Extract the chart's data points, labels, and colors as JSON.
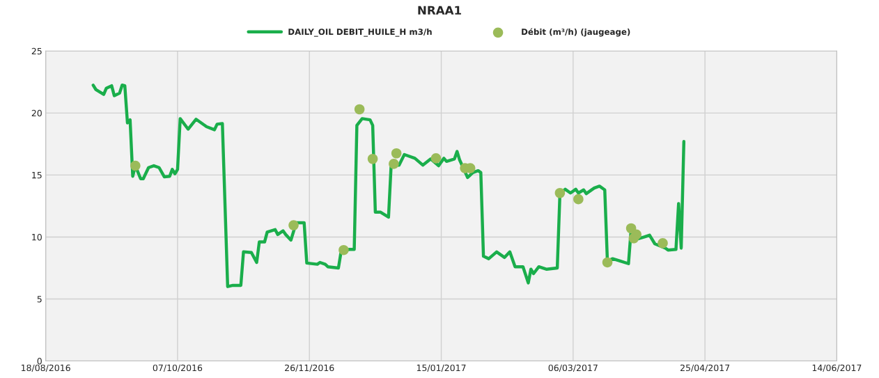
{
  "chart_data": {
    "type": "line",
    "title": "NRAA1",
    "xlim": [
      "2016-08-18",
      "2017-06-14"
    ],
    "xticks": [
      {
        "value": "2016-08-18",
        "label": "18/08/2016"
      },
      {
        "value": "2016-10-07",
        "label": "07/10/2016"
      },
      {
        "value": "2016-11-26",
        "label": "26/11/2016"
      },
      {
        "value": "2017-01-15",
        "label": "15/01/2017"
      },
      {
        "value": "2017-03-06",
        "label": "06/03/2017"
      },
      {
        "value": "2017-04-25",
        "label": "25/04/2017"
      },
      {
        "value": "2017-06-14",
        "label": "14/06/2017"
      }
    ],
    "ylim": [
      0,
      25
    ],
    "yticks": [
      0,
      5,
      10,
      15,
      20,
      25
    ],
    "grid": true,
    "legend": "top",
    "series": [
      {
        "name": "DAILY_OIL DEBIT_HUILE_H m3/h",
        "color": "#1aae4b",
        "marker": "none",
        "line_style": "solid",
        "x": [
          "2016-09-05",
          "2016-09-06",
          "2016-09-09",
          "2016-09-10",
          "2016-09-12",
          "2016-09-13",
          "2016-09-15",
          "2016-09-16",
          "2016-09-17",
          "2016-09-18",
          "2016-09-19",
          "2016-09-20",
          "2016-09-21",
          "2016-09-23",
          "2016-09-24",
          "2016-09-26",
          "2016-09-28",
          "2016-09-30",
          "2016-10-02",
          "2016-10-04",
          "2016-10-05",
          "2016-10-06",
          "2016-10-07",
          "2016-10-08",
          "2016-10-11",
          "2016-10-14",
          "2016-10-18",
          "2016-10-21",
          "2016-10-22",
          "2016-10-24",
          "2016-10-26",
          "2016-10-28",
          "2016-10-31",
          "2016-11-01",
          "2016-11-04",
          "2016-11-06",
          "2016-11-07",
          "2016-11-09",
          "2016-11-10",
          "2016-11-13",
          "2016-11-14",
          "2016-11-16",
          "2016-11-17",
          "2016-11-19",
          "2016-11-21",
          "2016-11-24",
          "2016-11-25",
          "2016-11-29",
          "2016-11-30",
          "2016-12-02",
          "2016-12-03",
          "2016-12-07",
          "2016-12-08",
          "2016-12-11",
          "2016-12-13",
          "2016-12-14",
          "2016-12-16",
          "2016-12-19",
          "2016-12-20",
          "2016-12-21",
          "2016-12-23",
          "2016-12-26",
          "2016-12-27",
          "2016-12-30",
          "2017-01-01",
          "2017-01-05",
          "2017-01-08",
          "2017-01-11",
          "2017-01-14",
          "2017-01-16",
          "2017-01-17",
          "2017-01-20",
          "2017-01-21",
          "2017-01-22",
          "2017-01-25",
          "2017-01-27",
          "2017-01-29",
          "2017-01-30",
          "2017-01-31",
          "2017-02-02",
          "2017-02-05",
          "2017-02-08",
          "2017-02-10",
          "2017-02-12",
          "2017-02-15",
          "2017-02-17",
          "2017-02-18",
          "2017-02-19",
          "2017-02-21",
          "2017-02-24",
          "2017-02-28",
          "2017-03-01",
          "2017-03-03",
          "2017-03-05",
          "2017-03-07",
          "2017-03-08",
          "2017-03-10",
          "2017-03-11",
          "2017-03-14",
          "2017-03-16",
          "2017-03-18",
          "2017-03-19",
          "2017-03-21",
          "2017-03-24",
          "2017-03-27",
          "2017-03-28",
          "2017-03-29",
          "2017-04-02",
          "2017-04-04",
          "2017-04-06",
          "2017-04-10",
          "2017-04-11",
          "2017-04-14",
          "2017-04-15",
          "2017-04-16",
          "2017-04-17"
        ],
        "values": [
          22.25,
          21.9,
          21.5,
          22.0,
          22.2,
          21.4,
          21.6,
          22.25,
          22.2,
          19.2,
          19.45,
          14.9,
          15.75,
          14.7,
          14.7,
          15.6,
          15.75,
          15.6,
          14.85,
          14.9,
          15.45,
          15.1,
          15.45,
          19.55,
          18.7,
          19.5,
          18.9,
          18.65,
          19.1,
          19.15,
          6.0,
          6.1,
          6.1,
          8.8,
          8.75,
          7.95,
          9.6,
          9.6,
          10.4,
          10.6,
          10.2,
          10.5,
          10.2,
          9.75,
          11.15,
          11.15,
          7.9,
          7.8,
          7.95,
          7.8,
          7.6,
          7.5,
          8.8,
          9.0,
          9.0,
          19.0,
          19.55,
          19.45,
          19.0,
          12.0,
          12.0,
          11.6,
          15.8,
          15.8,
          16.65,
          16.35,
          15.8,
          16.3,
          15.75,
          16.35,
          16.1,
          16.3,
          16.9,
          16.2,
          14.8,
          15.2,
          15.35,
          15.2,
          8.45,
          8.25,
          8.8,
          8.35,
          8.8,
          7.6,
          7.6,
          6.3,
          7.4,
          7.05,
          7.6,
          7.4,
          7.5,
          13.5,
          13.85,
          13.55,
          13.85,
          13.55,
          13.8,
          13.5,
          13.95,
          14.1,
          13.8,
          8.05,
          8.25,
          8.05,
          7.85,
          10.6,
          9.75,
          10.0,
          10.15,
          9.45,
          9.1,
          8.95,
          9.0,
          12.7,
          9.1,
          17.7
        ]
      },
      {
        "name": "Débit (m³/h) (jaugeage)",
        "type": "scatter",
        "color": "#9bbb59",
        "marker": "circle",
        "x": [
          "2016-09-21",
          "2016-11-20",
          "2016-12-09",
          "2016-12-15",
          "2016-12-20",
          "2016-12-28",
          "2016-12-29",
          "2017-01-13",
          "2017-01-24",
          "2017-01-26",
          "2017-03-01",
          "2017-03-08",
          "2017-03-19",
          "2017-03-28",
          "2017-03-29",
          "2017-03-30",
          "2017-04-09"
        ],
        "values": [
          15.75,
          10.95,
          8.95,
          20.3,
          16.3,
          15.9,
          16.75,
          16.35,
          15.55,
          15.55,
          13.55,
          13.05,
          7.95,
          10.7,
          9.9,
          10.2,
          9.5
        ]
      }
    ]
  }
}
